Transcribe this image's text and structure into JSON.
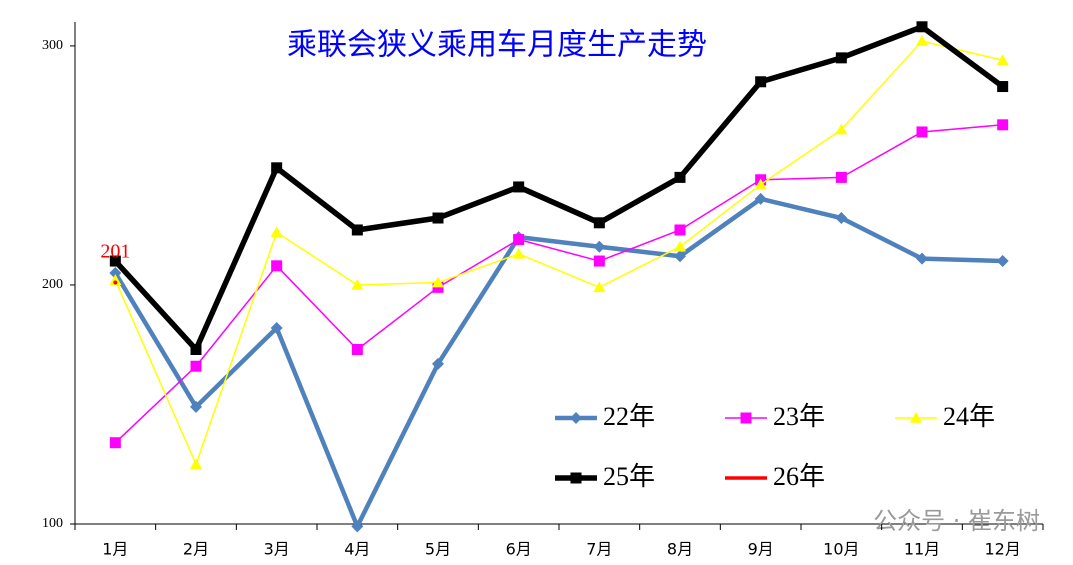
{
  "chart_data": {
    "type": "line",
    "title": "乘联会狭义乘用车月度生产走势",
    "categories": [
      "1月",
      "2月",
      "3月",
      "4月",
      "5月",
      "6月",
      "7月",
      "8月",
      "9月",
      "10月",
      "11月",
      "12月"
    ],
    "series": [
      {
        "name": "22年",
        "color": "#4f81bd",
        "marker": "diamond",
        "values": [
          205,
          149,
          182,
          99,
          167,
          220,
          216,
          212,
          236,
          228,
          211,
          210
        ]
      },
      {
        "name": "23年",
        "color": "#ff00ff",
        "marker": "square",
        "values": [
          134,
          166,
          208,
          173,
          199,
          219,
          210,
          223,
          244,
          245,
          264,
          267
        ]
      },
      {
        "name": "24年",
        "color": "#ffff00",
        "marker": "triangle",
        "values": [
          202,
          125,
          222,
          200,
          201,
          213,
          199,
          216,
          242,
          265,
          302,
          294
        ]
      },
      {
        "name": "25年",
        "color": "#000000",
        "marker": "square",
        "values": [
          210,
          173,
          249,
          223,
          228,
          241,
          226,
          245,
          285,
          295,
          308,
          283
        ]
      },
      {
        "name": "26年",
        "color": "#ff0000",
        "marker": "none",
        "values": [
          201,
          null,
          null,
          null,
          null,
          null,
          null,
          null,
          null,
          null,
          null,
          null
        ]
      }
    ],
    "ylim": [
      100,
      310
    ],
    "yticks": [
      100,
      200,
      300
    ],
    "grid": false,
    "legend": "lower right",
    "watermark": "公众号 · 崔东树"
  }
}
